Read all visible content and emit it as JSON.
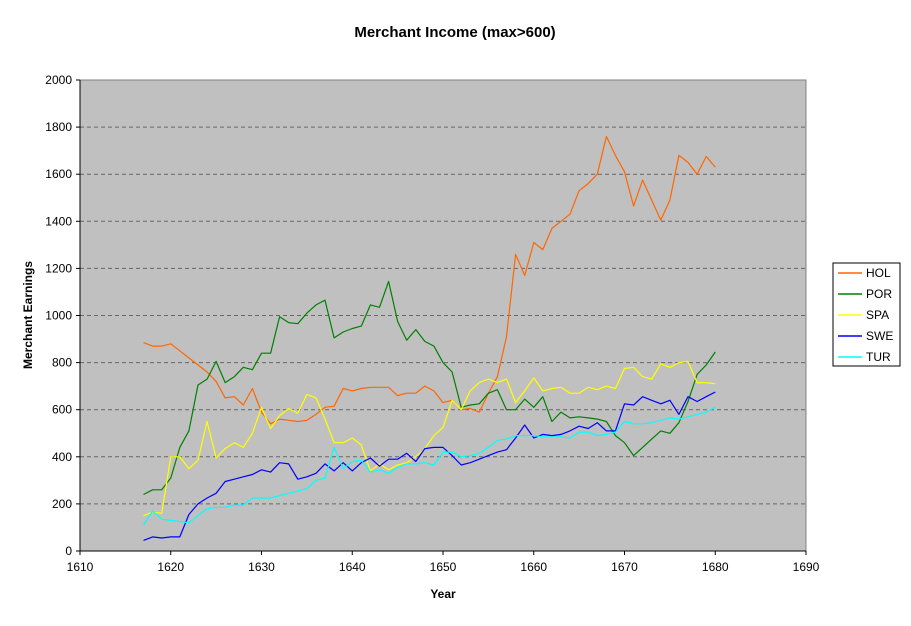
{
  "chart_data": {
    "type": "line",
    "title": "Merchant Income (max>600)",
    "xlabel": "Year",
    "ylabel": "Merchant Earnings",
    "xlim": [
      1610,
      1690
    ],
    "ylim": [
      0,
      2000
    ],
    "xticks": [
      "1610",
      "1620",
      "1630",
      "1640",
      "1650",
      "1660",
      "1670",
      "1680",
      "1690"
    ],
    "yticks": [
      "0",
      "200",
      "400",
      "600",
      "800",
      "1000",
      "1200",
      "1400",
      "1600",
      "1800",
      "2000"
    ],
    "grid": "horizontal dashed",
    "plot_background": "#c0c0c0",
    "legend_position": "right",
    "x": [
      1617,
      1618,
      1619,
      1620,
      1621,
      1622,
      1623,
      1624,
      1625,
      1626,
      1627,
      1628,
      1629,
      1630,
      1631,
      1632,
      1633,
      1634,
      1635,
      1636,
      1637,
      1638,
      1639,
      1640,
      1641,
      1642,
      1643,
      1644,
      1645,
      1646,
      1647,
      1648,
      1649,
      1650,
      1651,
      1652,
      1653,
      1654,
      1655,
      1656,
      1657,
      1658,
      1659,
      1660,
      1661,
      1662,
      1663,
      1664,
      1665,
      1666,
      1667,
      1668,
      1669,
      1670,
      1671,
      1672,
      1673,
      1674,
      1675,
      1676,
      1677,
      1678,
      1679,
      1680
    ],
    "series": [
      {
        "name": "HOL",
        "color": "#ff6600",
        "values": [
          885,
          870,
          870,
          880,
          850,
          820,
          790,
          760,
          720,
          650,
          655,
          620,
          690,
          590,
          540,
          560,
          555,
          550,
          555,
          580,
          610,
          615,
          690,
          680,
          690,
          695,
          695,
          695,
          660,
          670,
          670,
          700,
          680,
          630,
          640,
          600,
          605,
          590,
          670,
          740,
          910,
          1260,
          1170,
          1310,
          1280,
          1370,
          1400,
          1430,
          1530,
          1560,
          1600,
          1760,
          1680,
          1610,
          1465,
          1575,
          1490,
          1405,
          1490,
          1680,
          1650,
          1600,
          1675,
          1630
        ]
      },
      {
        "name": "POR",
        "color": "#008000",
        "values": [
          240,
          260,
          260,
          310,
          440,
          510,
          705,
          730,
          805,
          715,
          740,
          780,
          770,
          840,
          840,
          995,
          970,
          965,
          1010,
          1045,
          1065,
          905,
          930,
          945,
          955,
          1045,
          1035,
          1145,
          975,
          895,
          940,
          890,
          870,
          800,
          760,
          610,
          620,
          625,
          670,
          685,
          600,
          600,
          645,
          610,
          655,
          550,
          590,
          565,
          570,
          565,
          560,
          550,
          490,
          460,
          405,
          440,
          475,
          510,
          500,
          545,
          635,
          750,
          790,
          845
        ]
      },
      {
        "name": "SPA",
        "color": "#ffff00",
        "values": [
          150,
          165,
          160,
          400,
          400,
          350,
          385,
          550,
          395,
          435,
          460,
          440,
          500,
          610,
          520,
          575,
          605,
          585,
          665,
          650,
          560,
          460,
          460,
          480,
          450,
          340,
          370,
          345,
          365,
          375,
          400,
          435,
          490,
          525,
          640,
          600,
          680,
          715,
          730,
          715,
          730,
          630,
          680,
          735,
          680,
          690,
          695,
          670,
          670,
          695,
          685,
          700,
          690,
          775,
          780,
          740,
          730,
          795,
          780,
          800,
          805,
          715,
          715,
          710
        ]
      },
      {
        "name": "SWE",
        "color": "#0000ff",
        "values": [
          45,
          60,
          55,
          60,
          60,
          155,
          200,
          225,
          245,
          295,
          305,
          315,
          325,
          345,
          335,
          375,
          370,
          305,
          315,
          330,
          370,
          340,
          375,
          340,
          375,
          395,
          360,
          390,
          390,
          415,
          380,
          435,
          440,
          440,
          405,
          365,
          375,
          390,
          405,
          420,
          430,
          480,
          535,
          480,
          495,
          490,
          495,
          510,
          530,
          520,
          545,
          510,
          510,
          625,
          620,
          655,
          640,
          625,
          640,
          580,
          655,
          635,
          655,
          675
        ]
      },
      {
        "name": "TUR",
        "color": "#00ffff",
        "values": [
          110,
          170,
          135,
          130,
          125,
          120,
          150,
          180,
          185,
          185,
          195,
          195,
          225,
          225,
          225,
          235,
          245,
          255,
          265,
          300,
          310,
          440,
          350,
          380,
          385,
          335,
          345,
          330,
          355,
          370,
          370,
          375,
          365,
          420,
          420,
          400,
          405,
          415,
          440,
          470,
          475,
          490,
          490,
          490,
          485,
          485,
          485,
          480,
          505,
          505,
          490,
          495,
          505,
          550,
          540,
          540,
          545,
          555,
          565,
          560,
          570,
          580,
          590,
          610
        ]
      }
    ]
  }
}
